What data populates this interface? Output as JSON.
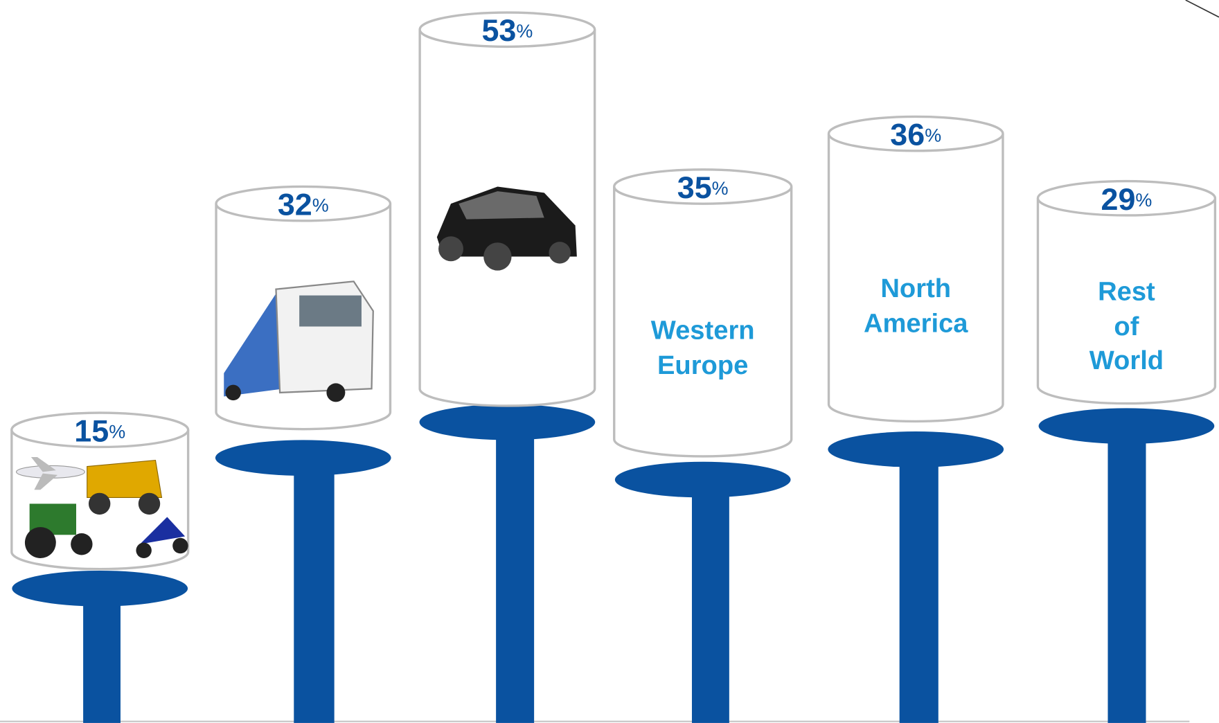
{
  "unit": "%",
  "items": [
    {
      "value": 15
    },
    {
      "value": 32
    },
    {
      "value": 53
    },
    {
      "value": 35,
      "label": [
        "Western",
        "Europe"
      ]
    },
    {
      "value": 36,
      "label": [
        "North",
        "America"
      ]
    },
    {
      "value": 29,
      "label": [
        "Rest",
        "of",
        "World"
      ]
    }
  ]
}
